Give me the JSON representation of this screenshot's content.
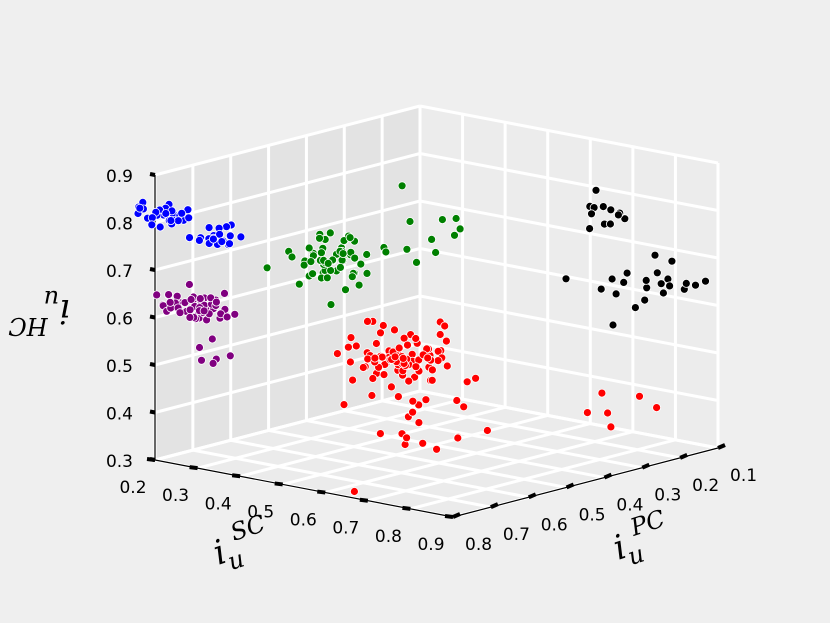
{
  "chart_data": {
    "type": "scatter",
    "projection": "3d",
    "title": "",
    "axes": {
      "x": {
        "label_main": "i",
        "label_sub": "u",
        "label_sup": "SC",
        "range": [
          0.2,
          0.9
        ],
        "ticks": [
          "0.2",
          "0.3",
          "0.4",
          "0.5",
          "0.6",
          "0.7",
          "0.8",
          "0.9"
        ]
      },
      "y": {
        "label_main": "i",
        "label_sub": "u",
        "label_sup": "PC",
        "range": [
          0.1,
          0.8
        ],
        "ticks": [
          "0.1",
          "0.2",
          "0.3",
          "0.4",
          "0.5",
          "0.6",
          "0.7",
          "0.8"
        ]
      },
      "z": {
        "label_main": "i",
        "label_sub": "u",
        "label_sup": "HC",
        "range": [
          0.3,
          0.9
        ],
        "ticks": [
          "0.3",
          "0.4",
          "0.5",
          "0.6",
          "0.7",
          "0.8",
          "0.9"
        ]
      }
    },
    "grid": true,
    "legend": "none",
    "colors": {
      "pane_left": "#e3e3e3",
      "pane_right": "#ececec",
      "floor": "#ebebeb",
      "grid": "#ffffff",
      "background": "#efefef"
    },
    "series": [
      {
        "color": "#0000ff",
        "clusters": [
          {
            "center": [
              0.22,
              0.8,
              0.82
            ],
            "spread": [
              0.03,
              0.02,
              0.01
            ],
            "count": 30
          },
          {
            "center": [
              0.3,
              0.75,
              0.78
            ],
            "spread": [
              0.03,
              0.02,
              0.01
            ],
            "count": 20
          }
        ]
      },
      {
        "color": "#800080",
        "clusters": [
          {
            "center": [
              0.25,
              0.75,
              0.62
            ],
            "spread": [
              0.04,
              0.03,
              0.015
            ],
            "count": 55
          },
          {
            "center": [
              0.32,
              0.78,
              0.55
            ],
            "spread": [
              0.02,
              0.02,
              0.02
            ],
            "count": 6
          }
        ]
      },
      {
        "color": "#008000",
        "clusters": [
          {
            "center": [
              0.45,
              0.6,
              0.72
            ],
            "spread": [
              0.04,
              0.04,
              0.025
            ],
            "count": 60
          },
          {
            "center": [
              0.55,
              0.45,
              0.77
            ],
            "spread": [
              0.04,
              0.04,
              0.04
            ],
            "count": 10
          }
        ]
      },
      {
        "color": "#ff0000",
        "clusters": [
          {
            "center": [
              0.55,
              0.55,
              0.52
            ],
            "spread": [
              0.05,
              0.05,
              0.03
            ],
            "count": 90
          },
          {
            "center": [
              0.65,
              0.62,
              0.42
            ],
            "spread": [
              0.06,
              0.06,
              0.05
            ],
            "count": 20
          },
          {
            "center": [
              0.85,
              0.35,
              0.44
            ],
            "spread": [
              0.05,
              0.05,
              0.03
            ],
            "count": 6
          }
        ]
      },
      {
        "color": "#000000",
        "clusters": [
          {
            "center": [
              0.8,
              0.3,
              0.82
            ],
            "spread": [
              0.03,
              0.03,
              0.02
            ],
            "count": 12
          },
          {
            "center": [
              0.8,
              0.2,
              0.64
            ],
            "spread": [
              0.04,
              0.06,
              0.03
            ],
            "count": 22
          }
        ]
      }
    ]
  }
}
